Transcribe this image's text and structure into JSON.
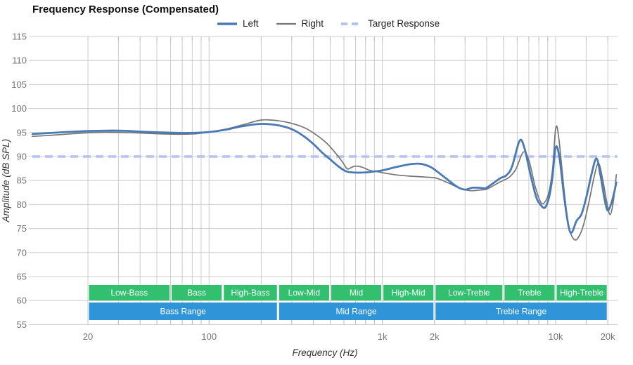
{
  "title": "Frequency Response (Compensated)",
  "chart_data": {
    "type": "line",
    "title": "Frequency Response (Compensated)",
    "xlabel": "Frequency (Hz)",
    "ylabel": "Amplitude (dB SPL)",
    "x_scale": "log",
    "x_range_hz": [
      9.5,
      22400
    ],
    "y_range_db": [
      55,
      115
    ],
    "y_tick_step": 5,
    "y_tick_labels": [
      "55",
      "60",
      "65",
      "70",
      "75",
      "80",
      "85",
      "90",
      "95",
      "100",
      "105",
      "110",
      "115"
    ],
    "x_tick_labels": [
      [
        20,
        "20"
      ],
      [
        100,
        "100"
      ],
      [
        1000,
        "1k"
      ],
      [
        2000,
        "2k"
      ],
      [
        10000,
        "10k"
      ],
      [
        20000,
        "20k"
      ]
    ],
    "x_gridlines_hz": [
      20,
      30,
      40,
      50,
      60,
      70,
      80,
      90,
      100,
      200,
      300,
      400,
      500,
      600,
      700,
      800,
      900,
      1000,
      2000,
      3000,
      4000,
      5000,
      6000,
      7000,
      8000,
      9000,
      10000,
      15000,
      20000
    ],
    "grid_on": true,
    "grid_color": "#cccccc",
    "tick_text_color": "#757575",
    "axis_title_color": "#333333",
    "legend_position": "top",
    "legend": [
      {
        "label": "Left",
        "color": "#4a79b4",
        "dashed": false
      },
      {
        "label": "Right",
        "color": "#757575",
        "dashed": false
      },
      {
        "label": "Target Response",
        "color": "#b6c2f2",
        "dashed": true
      }
    ],
    "target": {
      "label": "Target Response",
      "value_db": 90,
      "color": "#b6c2f2",
      "width": 3.4,
      "dash": [
        11,
        7
      ]
    },
    "series": [
      {
        "name": "Right",
        "color": "#757575",
        "width": 1.7,
        "points": [
          [
            9.5,
            94.2
          ],
          [
            12,
            94.4
          ],
          [
            15,
            94.65
          ],
          [
            20,
            94.95
          ],
          [
            26,
            95.05
          ],
          [
            33,
            95.0
          ],
          [
            42,
            94.85
          ],
          [
            55,
            94.7
          ],
          [
            70,
            94.65
          ],
          [
            85,
            94.75
          ],
          [
            100,
            95.1
          ],
          [
            125,
            95.7
          ],
          [
            160,
            96.7
          ],
          [
            200,
            97.6
          ],
          [
            245,
            97.5
          ],
          [
            300,
            96.9
          ],
          [
            360,
            95.9
          ],
          [
            420,
            94.4
          ],
          [
            480,
            92.7
          ],
          [
            540,
            90.6
          ],
          [
            580,
            89.2
          ],
          [
            610,
            88.0
          ],
          [
            630,
            87.4
          ],
          [
            665,
            87.75
          ],
          [
            700,
            88.0
          ],
          [
            760,
            87.8
          ],
          [
            850,
            87.1
          ],
          [
            950,
            86.8
          ],
          [
            1050,
            86.5
          ],
          [
            1250,
            86.1
          ],
          [
            1550,
            85.85
          ],
          [
            1800,
            85.7
          ],
          [
            2050,
            85.5
          ],
          [
            2400,
            84.5
          ],
          [
            2800,
            83.4
          ],
          [
            3200,
            82.9
          ],
          [
            3600,
            83.0
          ],
          [
            4000,
            83.2
          ],
          [
            4400,
            84.0
          ],
          [
            4900,
            84.9
          ],
          [
            5400,
            85.7
          ],
          [
            5900,
            87.4
          ],
          [
            6500,
            90.9
          ],
          [
            7000,
            89.3
          ],
          [
            7600,
            83.9
          ],
          [
            8100,
            80.9
          ],
          [
            8500,
            80.2
          ],
          [
            9100,
            82.3
          ],
          [
            9600,
            87.5
          ],
          [
            10000,
            95.8
          ],
          [
            10400,
            94.2
          ],
          [
            11200,
            82.8
          ],
          [
            11900,
            75.5
          ],
          [
            12800,
            72.7
          ],
          [
            13700,
            73.5
          ],
          [
            14600,
            76.2
          ],
          [
            15600,
            80.7
          ],
          [
            16800,
            86.3
          ],
          [
            17700,
            88.6
          ],
          [
            18700,
            85.2
          ],
          [
            19700,
            80.6
          ],
          [
            20600,
            77.9
          ],
          [
            21500,
            80.5
          ],
          [
            22400,
            86.2
          ]
        ]
      },
      {
        "name": "Left",
        "color": "#4a79b4",
        "width": 2.8,
        "points": [
          [
            9.5,
            94.7
          ],
          [
            12,
            94.9
          ],
          [
            15,
            95.1
          ],
          [
            20,
            95.3
          ],
          [
            26,
            95.4
          ],
          [
            33,
            95.35
          ],
          [
            42,
            95.15
          ],
          [
            55,
            95.0
          ],
          [
            70,
            94.9
          ],
          [
            85,
            94.95
          ],
          [
            100,
            95.1
          ],
          [
            125,
            95.6
          ],
          [
            155,
            96.3
          ],
          [
            200,
            96.8
          ],
          [
            250,
            96.5
          ],
          [
            300,
            95.7
          ],
          [
            350,
            94.3
          ],
          [
            400,
            92.6
          ],
          [
            450,
            90.8
          ],
          [
            500,
            89.4
          ],
          [
            560,
            87.9
          ],
          [
            620,
            86.9
          ],
          [
            700,
            86.65
          ],
          [
            800,
            86.7
          ],
          [
            900,
            86.9
          ],
          [
            1000,
            87.1
          ],
          [
            1200,
            87.8
          ],
          [
            1450,
            88.4
          ],
          [
            1650,
            88.5
          ],
          [
            1850,
            88.0
          ],
          [
            2000,
            87.3
          ],
          [
            2300,
            85.6
          ],
          [
            2700,
            83.7
          ],
          [
            3000,
            83.1
          ],
          [
            3300,
            83.5
          ],
          [
            3650,
            83.5
          ],
          [
            3950,
            83.4
          ],
          [
            4300,
            84.3
          ],
          [
            4800,
            85.5
          ],
          [
            5200,
            86.1
          ],
          [
            5600,
            87.9
          ],
          [
            6200,
            93.3
          ],
          [
            6600,
            91.8
          ],
          [
            7100,
            86.8
          ],
          [
            7700,
            81.7
          ],
          [
            8200,
            79.9
          ],
          [
            8700,
            79.4
          ],
          [
            9200,
            81.8
          ],
          [
            9600,
            86.0
          ],
          [
            10000,
            91.9
          ],
          [
            10500,
            90.0
          ],
          [
            11200,
            81.5
          ],
          [
            11900,
            75.3
          ],
          [
            12400,
            74.2
          ],
          [
            13200,
            76.6
          ],
          [
            14100,
            78.0
          ],
          [
            15100,
            81.8
          ],
          [
            16100,
            86.3
          ],
          [
            17200,
            89.6
          ],
          [
            18200,
            85.8
          ],
          [
            19100,
            81.3
          ],
          [
            19900,
            78.8
          ],
          [
            20800,
            79.9
          ],
          [
            21600,
            82.0
          ],
          [
            22400,
            84.6
          ]
        ]
      }
    ],
    "bands": {
      "green_color": "#32bf6e",
      "blue_color": "#3095d8",
      "label_color": "#ffffff",
      "row1": [
        {
          "label": "Low-Bass",
          "from_hz": 20,
          "to_hz": 60
        },
        {
          "label": "Bass",
          "from_hz": 60,
          "to_hz": 120
        },
        {
          "label": "High-Bass",
          "from_hz": 120,
          "to_hz": 250
        },
        {
          "label": "Low-Mid",
          "from_hz": 250,
          "to_hz": 500
        },
        {
          "label": "Mid",
          "from_hz": 500,
          "to_hz": 1000
        },
        {
          "label": "High-Mid",
          "from_hz": 1000,
          "to_hz": 2000
        },
        {
          "label": "Low-Treble",
          "from_hz": 2000,
          "to_hz": 5000
        },
        {
          "label": "Treble",
          "from_hz": 5000,
          "to_hz": 10000
        },
        {
          "label": "High-Treble",
          "from_hz": 10000,
          "to_hz": 20000
        }
      ],
      "row2": [
        {
          "label": "Bass Range",
          "from_hz": 20,
          "to_hz": 250
        },
        {
          "label": "Mid Range",
          "from_hz": 250,
          "to_hz": 2000
        },
        {
          "label": "Treble Range",
          "from_hz": 2000,
          "to_hz": 20000
        }
      ]
    }
  }
}
